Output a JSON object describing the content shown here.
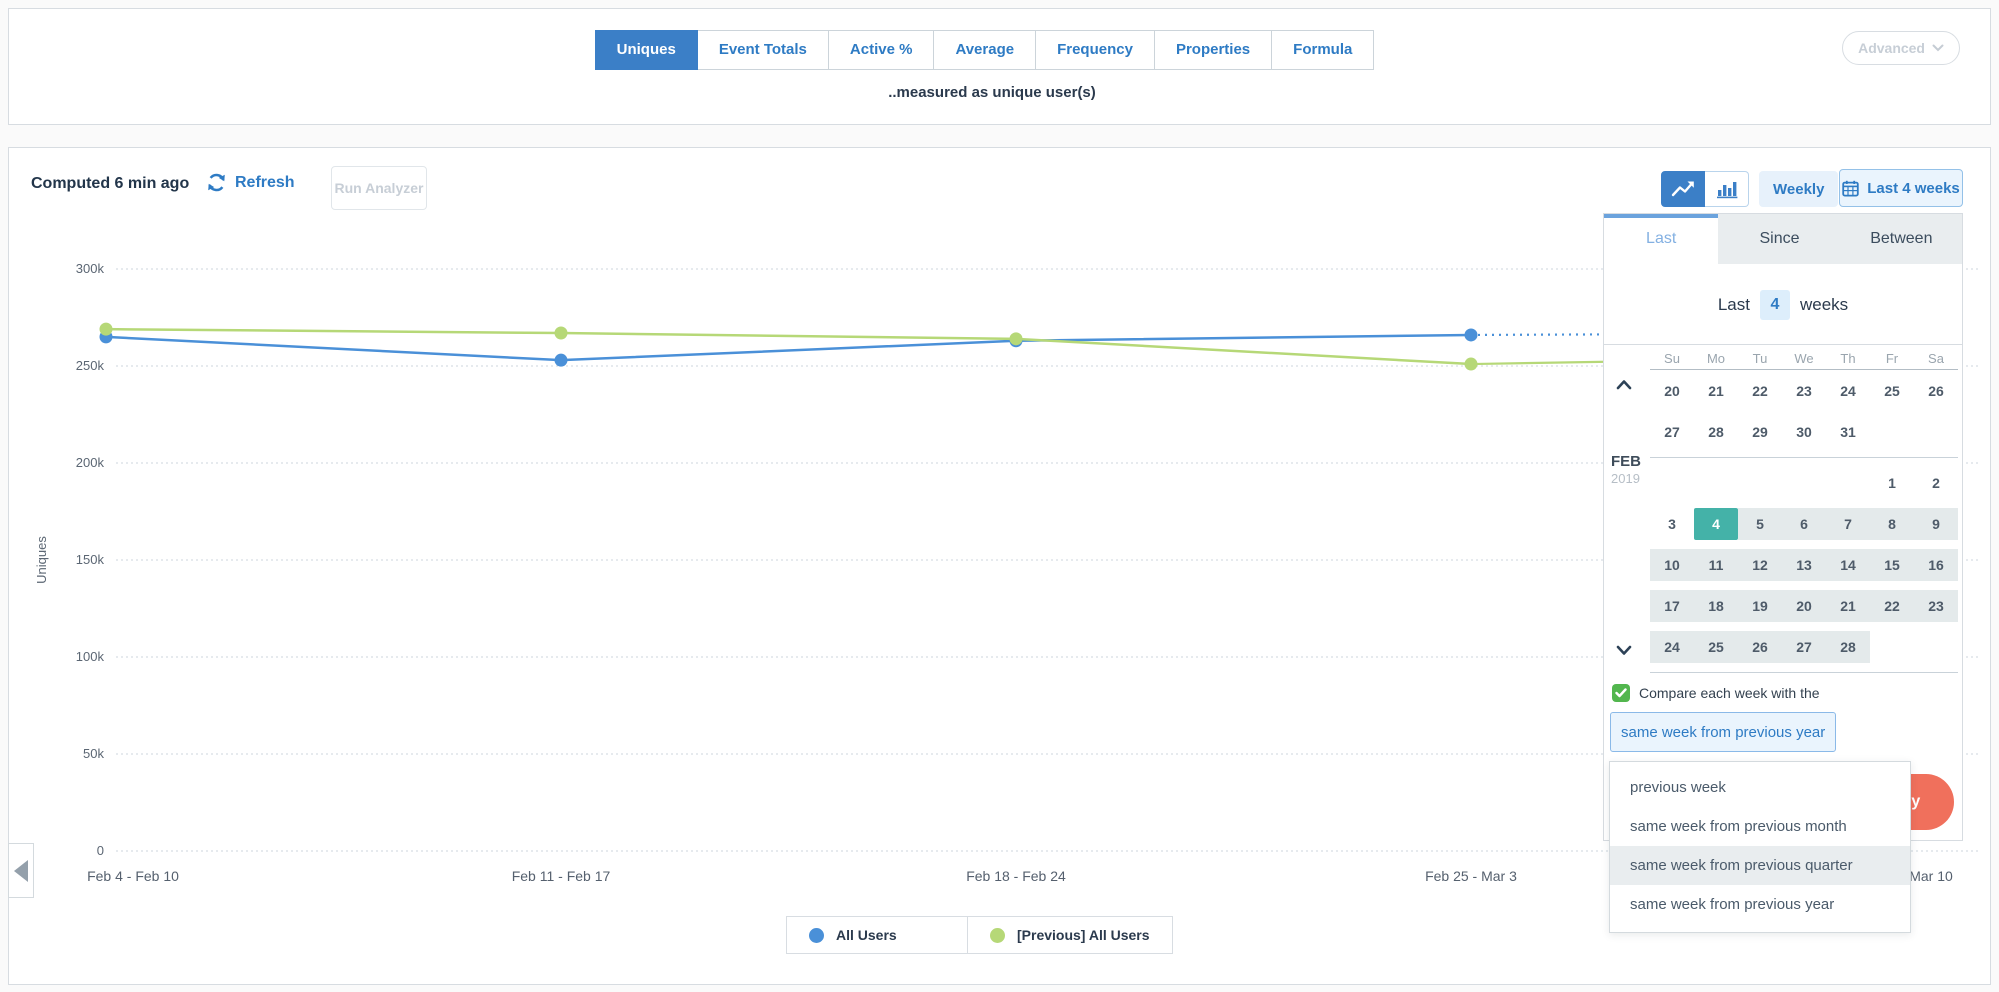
{
  "colors": {
    "accent_blue": "#2e7bc4",
    "tab_blue": "#3b7fc7",
    "line_blue": "#4a90d8",
    "line_green": "#b6d877",
    "teal": "#44b2a8",
    "range_bg": "#e4eaeb",
    "check_green": "#52b64e",
    "coral": "#f0705c",
    "dark": "#2b3a4d",
    "muted": "#9aa5ae",
    "axis": "#5b6673",
    "bord": "#d7dce1"
  },
  "icons": {
    "refresh": "circular-arrows",
    "line_chart": "trend-line",
    "bar_chart": "bars",
    "calendar": "calendar-grid",
    "chevron_down": "chevron-down",
    "chevron_up": "chevron-up",
    "checkmark": "checkmark",
    "collapse": "triangle-left"
  },
  "metric_tabs": {
    "items": [
      {
        "label": "Uniques",
        "selected": true
      },
      {
        "label": "Event Totals"
      },
      {
        "label": "Active %"
      },
      {
        "label": "Average"
      },
      {
        "label": "Frequency"
      },
      {
        "label": "Properties"
      },
      {
        "label": "Formula"
      }
    ],
    "subtitle": "..measured as unique user(s)",
    "advanced_label": "Advanced"
  },
  "toolbar": {
    "computed_text": "Computed 6 min ago",
    "refresh_label": "Refresh",
    "run_analyzer_label": "Run Analyzer",
    "interval_label": "Weekly",
    "range_label": "Last 4 weeks"
  },
  "chart_data": {
    "type": "line",
    "ylabel": "Uniques",
    "y_ticks": [
      "300k",
      "250k",
      "200k",
      "150k",
      "100k",
      "50k",
      "0"
    ],
    "ylim_k": [
      0,
      300
    ],
    "grid": "horizontal-dotted",
    "legend_position": "bottom-center",
    "x_categories": [
      "Feb 4 - Feb 10",
      "Feb 11 - Feb 17",
      "Feb 18 - Feb 24",
      "Feb 25 - Mar 3"
    ],
    "x_end_label": "Mar 10",
    "series": [
      {
        "name": "All Users",
        "color": "#4a90d8",
        "values_k": [
          265,
          253,
          263,
          266
        ],
        "projection_k": 267,
        "projection_style": "dotted"
      },
      {
        "name": "[Previous] All Users",
        "color": "#b6d877",
        "values_k": [
          269,
          267,
          264,
          251
        ],
        "projection_k": 255,
        "projection_style": "solid"
      }
    ]
  },
  "legend": {
    "items": [
      {
        "label": "All Users",
        "color": "#4a90d8"
      },
      {
        "label": "[Previous] All Users",
        "color": "#b6d877"
      }
    ]
  },
  "date_picker": {
    "tabs": [
      {
        "label": "Last",
        "active": true
      },
      {
        "label": "Since"
      },
      {
        "label": "Between"
      }
    ],
    "last_row": {
      "prefix": "Last",
      "value": "4",
      "suffix": "weeks"
    },
    "calendar": {
      "month": "FEB",
      "year": "2019",
      "day_headers": [
        "Su",
        "Mo",
        "Tu",
        "We",
        "Th",
        "Fr",
        "Sa"
      ],
      "rows": [
        {
          "cells": [
            {
              "day": "20"
            },
            {
              "day": "21"
            },
            {
              "day": "22"
            },
            {
              "day": "23"
            },
            {
              "day": "24"
            },
            {
              "day": "25"
            },
            {
              "day": "26"
            }
          ]
        },
        {
          "cells": [
            {
              "day": "27"
            },
            {
              "day": "28"
            },
            {
              "day": "29"
            },
            {
              "day": "30"
            },
            {
              "day": "31"
            },
            {},
            {}
          ],
          "separator_after": true
        },
        {
          "cells": [
            {},
            {},
            {},
            {},
            {},
            {
              "day": "1"
            },
            {
              "day": "2"
            }
          ]
        },
        {
          "cells": [
            {
              "day": "3"
            },
            {
              "day": "4",
              "state": "selected"
            },
            {
              "day": "5",
              "state": "range"
            },
            {
              "day": "6",
              "state": "range"
            },
            {
              "day": "7",
              "state": "range"
            },
            {
              "day": "8",
              "state": "range"
            },
            {
              "day": "9",
              "state": "range"
            }
          ]
        },
        {
          "cells": [
            {
              "day": "10",
              "state": "range"
            },
            {
              "day": "11",
              "state": "range"
            },
            {
              "day": "12",
              "state": "range"
            },
            {
              "day": "13",
              "state": "range"
            },
            {
              "day": "14",
              "state": "range"
            },
            {
              "day": "15",
              "state": "range"
            },
            {
              "day": "16",
              "state": "range"
            }
          ]
        },
        {
          "cells": [
            {
              "day": "17",
              "state": "range"
            },
            {
              "day": "18",
              "state": "range"
            },
            {
              "day": "19",
              "state": "range"
            },
            {
              "day": "20",
              "state": "range"
            },
            {
              "day": "21",
              "state": "range"
            },
            {
              "day": "22",
              "state": "range"
            },
            {
              "day": "23",
              "state": "range"
            }
          ]
        },
        {
          "cells": [
            {
              "day": "24",
              "state": "range"
            },
            {
              "day": "25",
              "state": "range"
            },
            {
              "day": "26",
              "state": "range"
            },
            {
              "day": "27",
              "state": "range"
            },
            {
              "day": "28",
              "state": "range"
            },
            {},
            {}
          ],
          "separator_after": true
        }
      ]
    },
    "compare_label": "Compare each week with the",
    "compare_checked": true,
    "compare_value": "same week from previous year",
    "compare_options": [
      {
        "label": "previous week"
      },
      {
        "label": "same week from previous month"
      },
      {
        "label": "same week from previous quarter",
        "highlighted": true
      },
      {
        "label": "same week from previous year"
      }
    ],
    "apply_label": "Apply"
  }
}
